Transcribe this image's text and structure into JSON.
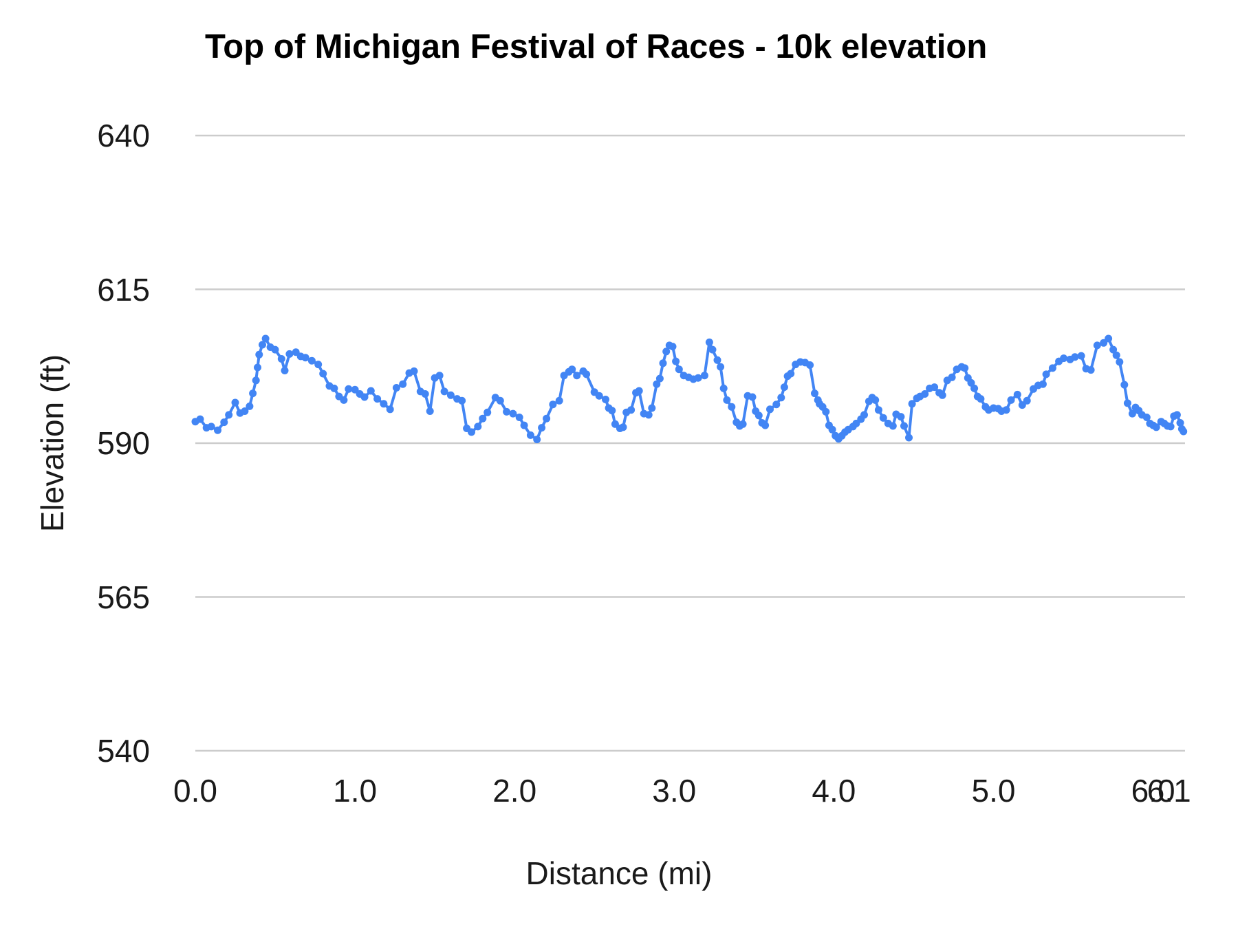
{
  "title": "Top of Michigan Festival of Races - 10k elevation",
  "colors": {
    "series": "#4285f4",
    "gridline": "#cccccc",
    "text": "#1a1a1a"
  },
  "chart_data": {
    "type": "line",
    "title": "Top of Michigan Festival of Races - 10k elevation",
    "xlabel": "Distance (mi)",
    "ylabel": "Elevation (ft)",
    "xlim": [
      0,
      6.2
    ],
    "ylim": [
      540,
      640
    ],
    "grid": "horizontal",
    "legend_position": "none",
    "marker": "circle",
    "y_ticks": [
      {
        "value": 640,
        "label": "640"
      },
      {
        "value": 615,
        "label": "615"
      },
      {
        "value": 590,
        "label": "590"
      },
      {
        "value": 565,
        "label": "565"
      },
      {
        "value": 540,
        "label": "540"
      }
    ],
    "x_ticks": [
      {
        "value": 0.0,
        "label": "0.0"
      },
      {
        "value": 1.0,
        "label": "1.0"
      },
      {
        "value": 2.0,
        "label": "2.0"
      },
      {
        "value": 3.0,
        "label": "3.0"
      },
      {
        "value": 4.0,
        "label": "4.0"
      },
      {
        "value": 5.0,
        "label": "5.0"
      },
      {
        "value": 6.0,
        "label": "6.0"
      },
      {
        "value": 6.1,
        "label": "6.1"
      }
    ],
    "series": [
      {
        "name": "Elevation (ft)",
        "points": [
          [
            0.0,
            593.5
          ],
          [
            0.03,
            593.9
          ],
          [
            0.07,
            592.5
          ],
          [
            0.1,
            592.7
          ],
          [
            0.14,
            592.1
          ],
          [
            0.18,
            593.4
          ],
          [
            0.21,
            594.6
          ],
          [
            0.25,
            596.6
          ],
          [
            0.28,
            594.9
          ],
          [
            0.31,
            595.2
          ],
          [
            0.34,
            596.0
          ],
          [
            0.36,
            598.1
          ],
          [
            0.38,
            600.2
          ],
          [
            0.39,
            602.3
          ],
          [
            0.4,
            604.4
          ],
          [
            0.42,
            606.0
          ],
          [
            0.44,
            607.0
          ],
          [
            0.47,
            605.6
          ],
          [
            0.5,
            605.2
          ],
          [
            0.54,
            603.7
          ],
          [
            0.56,
            601.8
          ],
          [
            0.59,
            604.5
          ],
          [
            0.63,
            604.8
          ],
          [
            0.66,
            604.1
          ],
          [
            0.69,
            603.9
          ],
          [
            0.73,
            603.4
          ],
          [
            0.77,
            602.8
          ],
          [
            0.8,
            601.3
          ],
          [
            0.84,
            599.3
          ],
          [
            0.87,
            598.9
          ],
          [
            0.9,
            597.6
          ],
          [
            0.93,
            597.0
          ],
          [
            0.96,
            598.8
          ],
          [
            1.0,
            598.7
          ],
          [
            1.03,
            598.0
          ],
          [
            1.06,
            597.5
          ],
          [
            1.1,
            598.5
          ],
          [
            1.14,
            597.2
          ],
          [
            1.18,
            596.4
          ],
          [
            1.22,
            595.5
          ],
          [
            1.26,
            599.0
          ],
          [
            1.3,
            599.6
          ],
          [
            1.34,
            601.4
          ],
          [
            1.37,
            601.7
          ],
          [
            1.41,
            598.4
          ],
          [
            1.44,
            598.0
          ],
          [
            1.47,
            595.2
          ],
          [
            1.5,
            600.6
          ],
          [
            1.53,
            601.0
          ],
          [
            1.56,
            598.4
          ],
          [
            1.6,
            597.8
          ],
          [
            1.64,
            597.2
          ],
          [
            1.67,
            596.9
          ],
          [
            1.7,
            592.4
          ],
          [
            1.73,
            591.8
          ],
          [
            1.77,
            592.7
          ],
          [
            1.8,
            594.0
          ],
          [
            1.83,
            595.0
          ],
          [
            1.88,
            597.4
          ],
          [
            1.91,
            596.9
          ],
          [
            1.95,
            595.1
          ],
          [
            1.99,
            594.8
          ],
          [
            2.03,
            594.2
          ],
          [
            2.06,
            592.9
          ],
          [
            2.1,
            591.3
          ],
          [
            2.14,
            590.6
          ],
          [
            2.17,
            592.5
          ],
          [
            2.2,
            594.0
          ],
          [
            2.24,
            596.3
          ],
          [
            2.28,
            596.9
          ],
          [
            2.31,
            601.0
          ],
          [
            2.34,
            601.6
          ],
          [
            2.36,
            602.0
          ],
          [
            2.39,
            601.0
          ],
          [
            2.43,
            601.7
          ],
          [
            2.45,
            601.2
          ],
          [
            2.5,
            598.3
          ],
          [
            2.53,
            597.7
          ],
          [
            2.57,
            597.1
          ],
          [
            2.59,
            595.7
          ],
          [
            2.61,
            595.3
          ],
          [
            2.63,
            593.1
          ],
          [
            2.66,
            592.4
          ],
          [
            2.68,
            592.6
          ],
          [
            2.7,
            595.0
          ],
          [
            2.73,
            595.4
          ],
          [
            2.76,
            598.2
          ],
          [
            2.78,
            598.5
          ],
          [
            2.81,
            594.8
          ],
          [
            2.84,
            594.6
          ],
          [
            2.86,
            595.7
          ],
          [
            2.89,
            599.6
          ],
          [
            2.91,
            600.5
          ],
          [
            2.93,
            603.0
          ],
          [
            2.95,
            604.9
          ],
          [
            2.97,
            605.9
          ],
          [
            2.99,
            605.7
          ],
          [
            3.01,
            603.3
          ],
          [
            3.03,
            602.0
          ],
          [
            3.06,
            601.0
          ],
          [
            3.09,
            600.7
          ],
          [
            3.12,
            600.4
          ],
          [
            3.15,
            600.6
          ],
          [
            3.19,
            601.0
          ],
          [
            3.22,
            606.4
          ],
          [
            3.24,
            605.2
          ],
          [
            3.27,
            603.5
          ],
          [
            3.29,
            602.4
          ],
          [
            3.31,
            598.9
          ],
          [
            3.33,
            597.0
          ],
          [
            3.36,
            595.9
          ],
          [
            3.39,
            593.4
          ],
          [
            3.41,
            592.8
          ],
          [
            3.43,
            593.1
          ],
          [
            3.46,
            597.7
          ],
          [
            3.49,
            597.5
          ],
          [
            3.51,
            595.2
          ],
          [
            3.53,
            594.5
          ],
          [
            3.55,
            593.3
          ],
          [
            3.57,
            592.9
          ],
          [
            3.6,
            595.5
          ],
          [
            3.64,
            596.3
          ],
          [
            3.67,
            597.4
          ],
          [
            3.69,
            599.1
          ],
          [
            3.71,
            600.9
          ],
          [
            3.73,
            601.3
          ],
          [
            3.76,
            602.8
          ],
          [
            3.79,
            603.2
          ],
          [
            3.82,
            603.1
          ],
          [
            3.85,
            602.7
          ],
          [
            3.88,
            598.1
          ],
          [
            3.9,
            597.0
          ],
          [
            3.91,
            596.4
          ],
          [
            3.93,
            595.9
          ],
          [
            3.95,
            595.1
          ],
          [
            3.97,
            592.9
          ],
          [
            3.99,
            592.2
          ],
          [
            4.01,
            591.2
          ],
          [
            4.03,
            590.7
          ],
          [
            4.05,
            591.2
          ],
          [
            4.07,
            591.8
          ],
          [
            4.09,
            592.2
          ],
          [
            4.12,
            592.7
          ],
          [
            4.14,
            593.2
          ],
          [
            4.17,
            593.9
          ],
          [
            4.19,
            594.6
          ],
          [
            4.22,
            596.8
          ],
          [
            4.24,
            597.4
          ],
          [
            4.26,
            597.0
          ],
          [
            4.28,
            595.4
          ],
          [
            4.31,
            594.1
          ],
          [
            4.34,
            593.2
          ],
          [
            4.37,
            592.8
          ],
          [
            4.39,
            594.7
          ],
          [
            4.42,
            594.3
          ],
          [
            4.44,
            592.8
          ],
          [
            4.47,
            590.9
          ],
          [
            4.49,
            596.4
          ],
          [
            4.52,
            597.3
          ],
          [
            4.54,
            597.6
          ],
          [
            4.57,
            598.0
          ],
          [
            4.6,
            598.9
          ],
          [
            4.63,
            599.1
          ],
          [
            4.66,
            598.2
          ],
          [
            4.68,
            597.8
          ],
          [
            4.71,
            600.2
          ],
          [
            4.74,
            600.7
          ],
          [
            4.77,
            602.0
          ],
          [
            4.8,
            602.4
          ],
          [
            4.82,
            602.2
          ],
          [
            4.84,
            600.6
          ],
          [
            4.86,
            599.8
          ],
          [
            4.88,
            598.9
          ],
          [
            4.9,
            597.6
          ],
          [
            4.92,
            597.2
          ],
          [
            4.95,
            595.9
          ],
          [
            4.97,
            595.4
          ],
          [
            5.0,
            595.7
          ],
          [
            5.03,
            595.6
          ],
          [
            5.05,
            595.2
          ],
          [
            5.08,
            595.4
          ],
          [
            5.11,
            597.0
          ],
          [
            5.15,
            597.9
          ],
          [
            5.18,
            596.2
          ],
          [
            5.21,
            596.9
          ],
          [
            5.25,
            598.8
          ],
          [
            5.28,
            599.4
          ],
          [
            5.31,
            599.6
          ],
          [
            5.33,
            601.2
          ],
          [
            5.37,
            602.2
          ],
          [
            5.41,
            603.3
          ],
          [
            5.44,
            603.8
          ],
          [
            5.48,
            603.6
          ],
          [
            5.51,
            604.0
          ],
          [
            5.55,
            604.2
          ],
          [
            5.58,
            602.1
          ],
          [
            5.61,
            601.9
          ],
          [
            5.65,
            605.9
          ],
          [
            5.69,
            606.3
          ],
          [
            5.72,
            607.0
          ],
          [
            5.75,
            605.2
          ],
          [
            5.77,
            604.3
          ],
          [
            5.79,
            603.2
          ],
          [
            5.82,
            599.5
          ],
          [
            5.84,
            596.5
          ],
          [
            5.87,
            594.8
          ],
          [
            5.89,
            595.8
          ],
          [
            5.91,
            595.3
          ],
          [
            5.93,
            594.6
          ],
          [
            5.96,
            594.2
          ],
          [
            5.98,
            593.2
          ],
          [
            6.0,
            592.9
          ],
          [
            6.02,
            592.6
          ],
          [
            6.05,
            593.5
          ],
          [
            6.07,
            593.2
          ],
          [
            6.09,
            592.8
          ],
          [
            6.11,
            592.7
          ],
          [
            6.13,
            594.4
          ],
          [
            6.15,
            594.6
          ],
          [
            6.17,
            593.3
          ],
          [
            6.18,
            592.3
          ],
          [
            6.19,
            591.9
          ]
        ]
      }
    ]
  }
}
